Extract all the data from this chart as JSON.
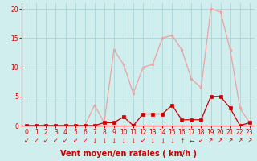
{
  "x": [
    0,
    1,
    2,
    3,
    4,
    5,
    6,
    7,
    8,
    9,
    10,
    11,
    12,
    13,
    14,
    15,
    16,
    17,
    18,
    19,
    20,
    21,
    22,
    23
  ],
  "rafales": [
    0,
    0,
    0,
    0,
    0,
    0,
    0,
    3.5,
    0.5,
    13,
    10.5,
    5.5,
    10,
    10.5,
    15,
    15.5,
    13,
    8,
    6.5,
    20,
    19.5,
    13,
    3,
    0.5
  ],
  "moyen": [
    0,
    0,
    0,
    0,
    0,
    0,
    0,
    0,
    0.5,
    0.5,
    1.5,
    0,
    2,
    2,
    2,
    3.5,
    1,
    1,
    1,
    5,
    5,
    3,
    0,
    0.5
  ],
  "color_rafales": "#f0a0a0",
  "color_moyen": "#cc0000",
  "bg_color": "#d0eeee",
  "grid_color": "#aad4d4",
  "xlabel": "Vent moyen/en rafales ( km/h )",
  "ylim": [
    0,
    21
  ],
  "xlim": [
    -0.5,
    23.5
  ],
  "yticks": [
    0,
    5,
    10,
    15,
    20
  ],
  "xticks": [
    0,
    1,
    2,
    3,
    4,
    5,
    6,
    7,
    8,
    9,
    10,
    11,
    12,
    13,
    14,
    15,
    16,
    17,
    18,
    19,
    20,
    21,
    22,
    23
  ],
  "axis_color": "#cc0000",
  "tick_color": "#cc0000",
  "label_fontsize": 7,
  "tick_fontsize": 5.5,
  "directions": [
    "↙",
    "↙",
    "↙",
    "↙",
    "↙",
    "↙",
    "↙",
    "↓",
    "↓",
    "↓",
    "↓",
    "↓",
    "↙",
    "↓",
    "↓",
    "↓",
    "↑",
    "←",
    "↙",
    "↗",
    "↗",
    "↗",
    "↗",
    "↗"
  ]
}
